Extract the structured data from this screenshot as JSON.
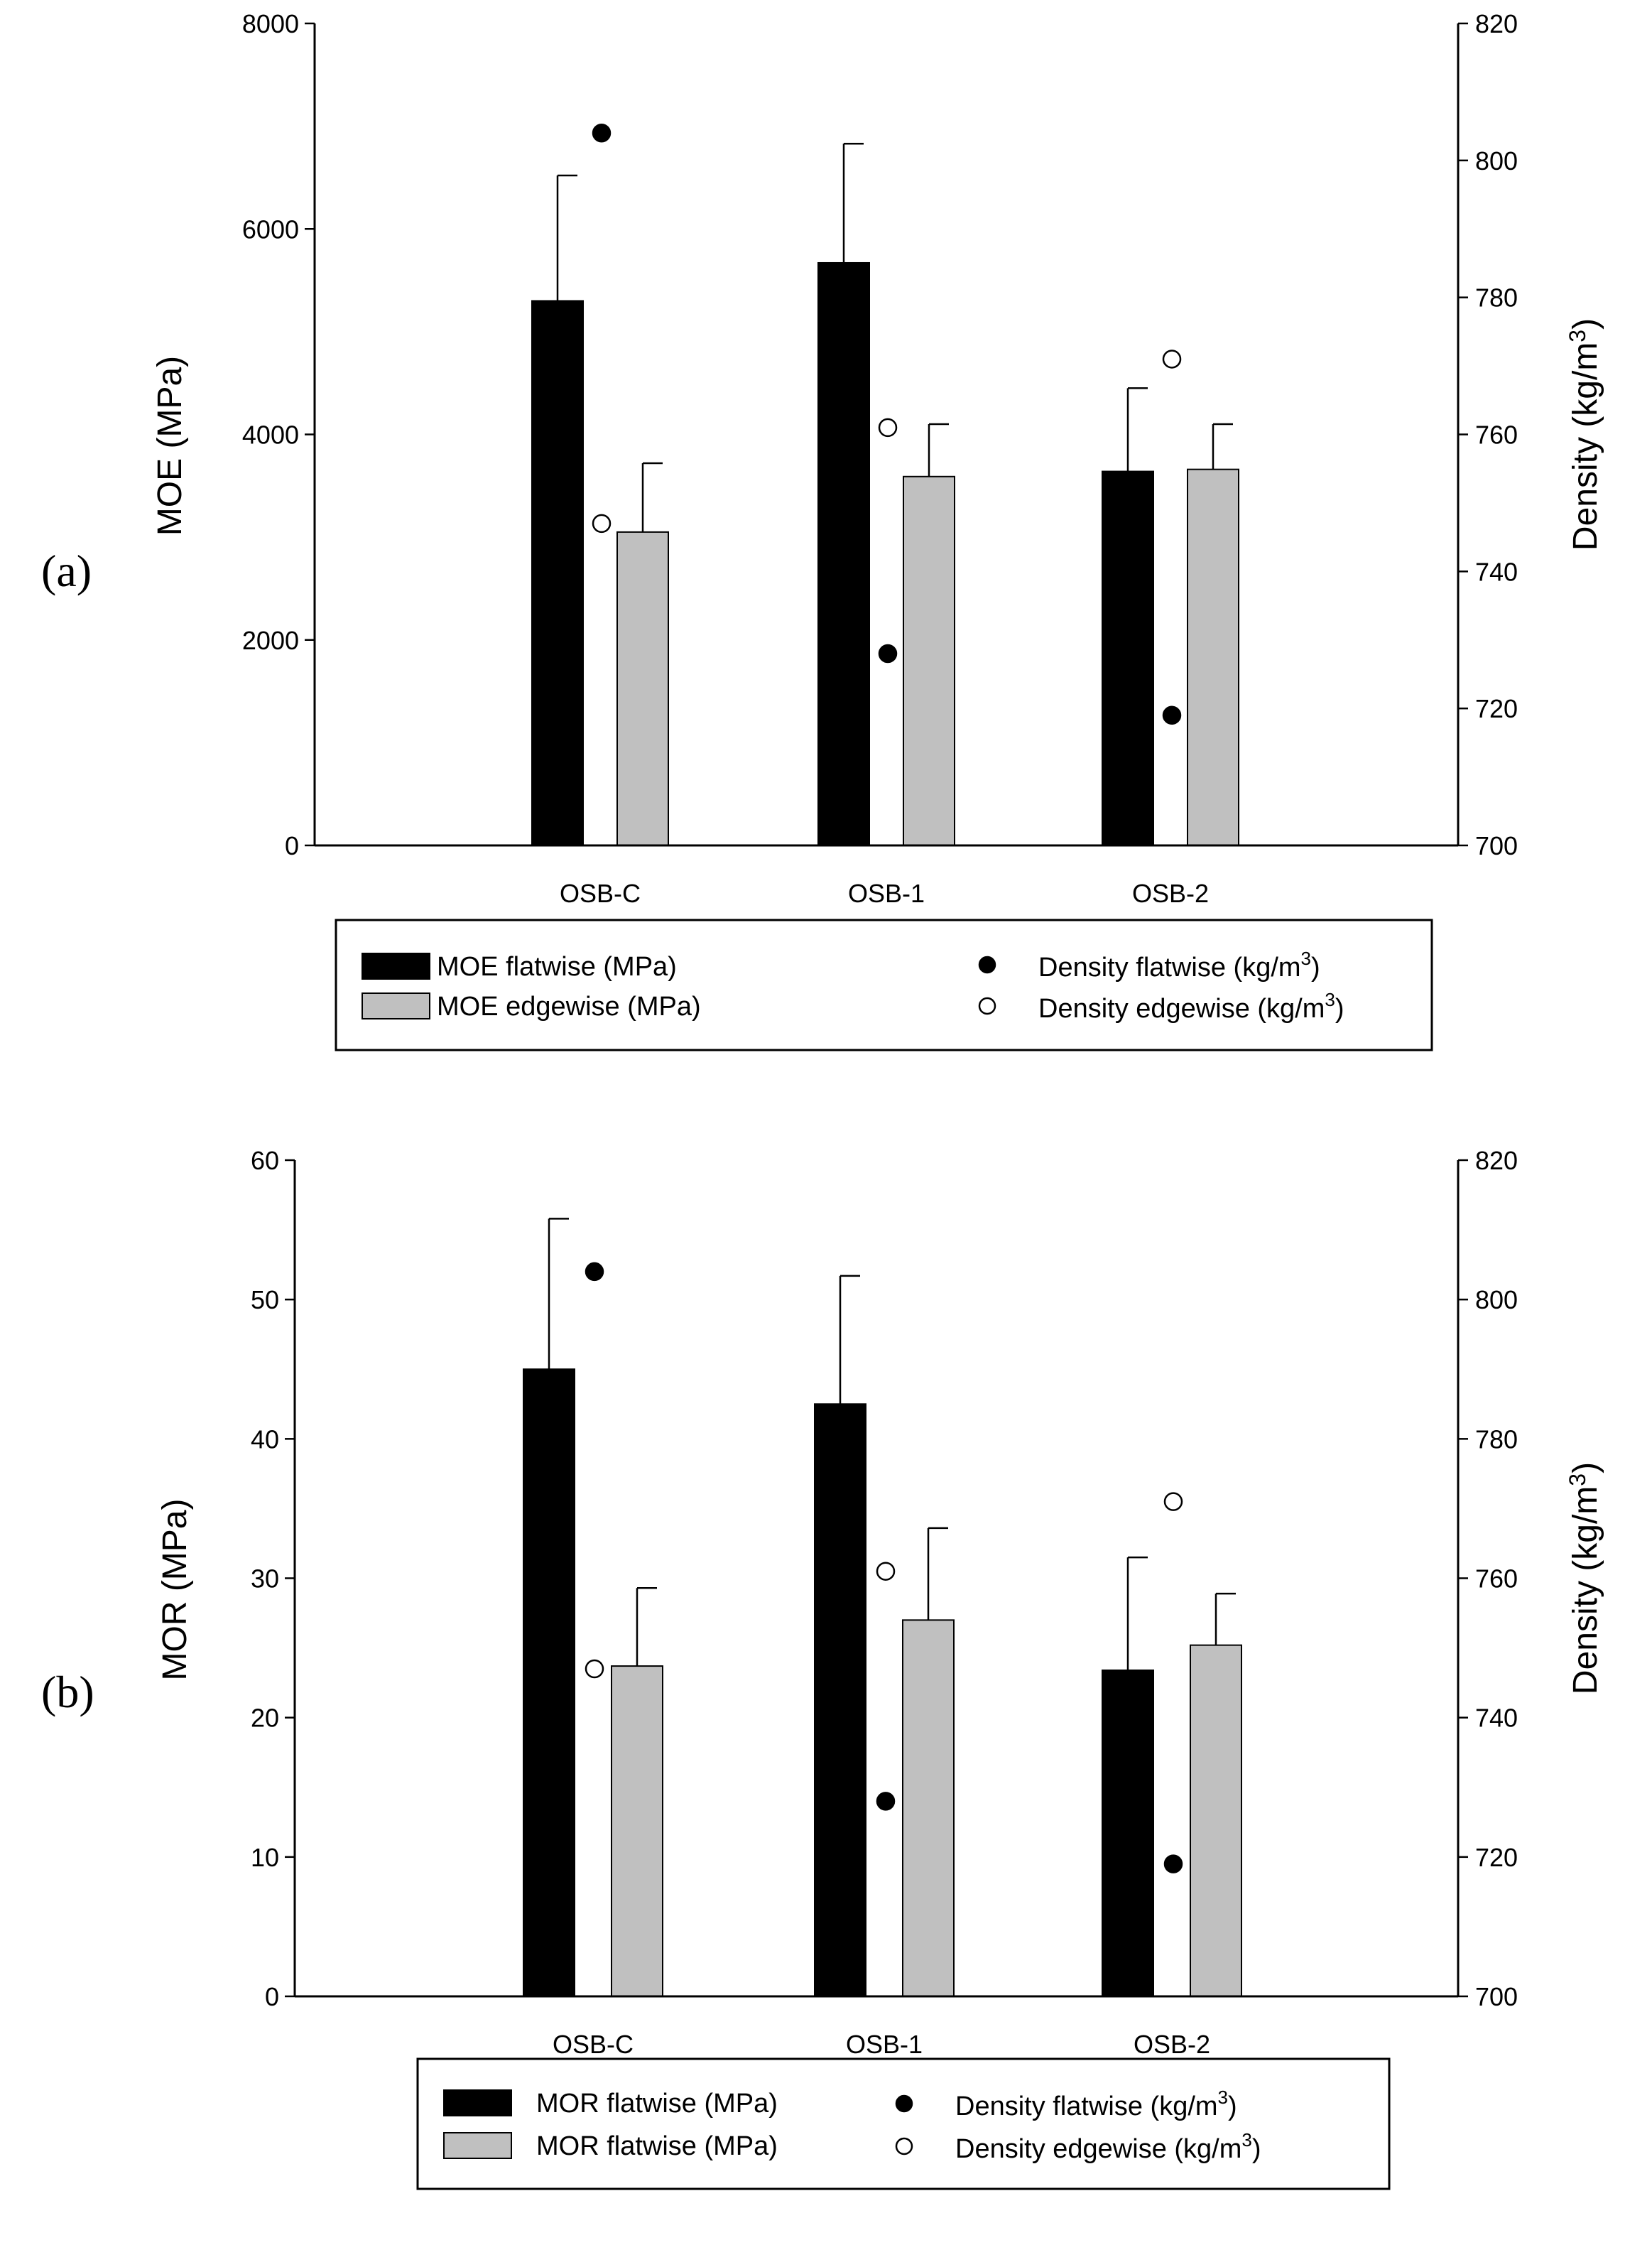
{
  "chart_data": [
    {
      "type": "bar",
      "panel_label": "(a)",
      "categories": [
        "OSB-C",
        "OSB-1",
        "OSB-2"
      ],
      "series": [
        {
          "name": "MOE flatwise (MPa)",
          "axis": "left",
          "color": "#000000",
          "values": [
            5300,
            5670,
            3640
          ],
          "errors": [
            1220,
            1160,
            810
          ]
        },
        {
          "name": "MOE edgewise (MPa)",
          "axis": "left",
          "color": "#c0c0c0",
          "values": [
            3050,
            3590,
            3660
          ],
          "errors": [
            670,
            510,
            440
          ]
        }
      ],
      "points": [
        {
          "name": "Density flatwise",
          "unit": "(kg/m",
          "sup": "3",
          "close": ")",
          "axis": "right",
          "fill": "filled",
          "values": [
            804,
            728,
            719
          ]
        },
        {
          "name": "Density edgewise",
          "unit": "(kg/m",
          "sup": "3",
          "close": ")",
          "axis": "right",
          "fill": "open",
          "values": [
            747,
            761,
            771
          ]
        }
      ],
      "ylabel": "MOE (MPa)",
      "ylim": [
        0,
        8000
      ],
      "yticks": [
        0,
        2000,
        4000,
        6000,
        8000
      ],
      "y2label": "Density (kg/m",
      "y2label_sup": "3",
      "y2label_close": ")",
      "y2lim": [
        700,
        820
      ],
      "y2ticks": [
        700,
        720,
        740,
        760,
        780,
        800,
        820
      ],
      "legend": {
        "bars": [
          "MOE flatwise (MPa)",
          "MOE edgewise (MPa)"
        ],
        "points": [
          {
            "label": "Density flatwise",
            "unit": "(kg/m",
            "sup": "3",
            "close": ")",
            "fill": "filled"
          },
          {
            "label": "Density edgewise",
            "unit": "(kg/m",
            "sup": "3",
            "close": ")",
            "fill": "open"
          }
        ],
        "placement": "bottom"
      }
    },
    {
      "type": "bar",
      "panel_label": "(b)",
      "categories": [
        "OSB-C",
        "OSB-1",
        "OSB-2"
      ],
      "series": [
        {
          "name": "MOR flatwise (MPa)",
          "axis": "left",
          "color": "#000000",
          "values": [
            45.0,
            42.5,
            23.4
          ],
          "errors": [
            10.8,
            9.2,
            8.1
          ]
        },
        {
          "name": "MOR flatwise (MPa)",
          "axis": "left",
          "color": "#c0c0c0",
          "values": [
            23.7,
            27.0,
            25.2
          ],
          "errors": [
            5.6,
            6.6,
            3.7
          ]
        }
      ],
      "points": [
        {
          "name": "Density flatwise",
          "unit": "(kg/m",
          "sup": "3",
          "close": ")",
          "axis": "right",
          "fill": "filled",
          "values": [
            804,
            728,
            719
          ]
        },
        {
          "name": "Density edgewise",
          "unit": "(kg/m",
          "sup": "3",
          "close": ")",
          "axis": "right",
          "fill": "open",
          "values": [
            747,
            761,
            771
          ]
        }
      ],
      "ylabel": "MOR (MPa)",
      "ylim": [
        0,
        60
      ],
      "yticks": [
        0,
        10,
        20,
        30,
        40,
        50,
        60
      ],
      "y2label": "Density (kg/m",
      "y2label_sup": "3",
      "y2label_close": ")",
      "y2lim": [
        700,
        820
      ],
      "y2ticks": [
        700,
        720,
        740,
        760,
        780,
        800,
        820
      ],
      "legend": {
        "bars": [
          "MOR flatwise (MPa)",
          "MOR flatwise (MPa)"
        ],
        "points": [
          {
            "label": "Density flatwise",
            "unit": "(kg/m",
            "sup": "3",
            "close": ")",
            "fill": "filled"
          },
          {
            "label": "Density edgewise",
            "unit": "(kg/m",
            "sup": "3",
            "close": ")",
            "fill": "open"
          }
        ],
        "placement": "bottom"
      }
    }
  ]
}
